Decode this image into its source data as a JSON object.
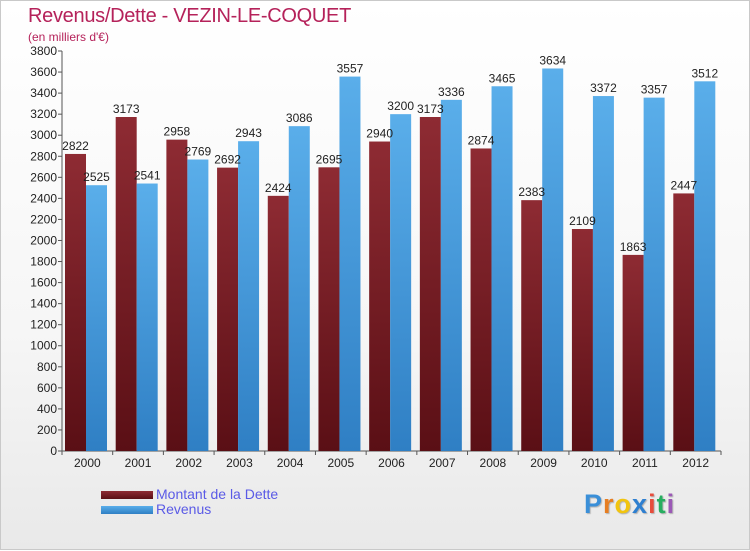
{
  "colors": {
    "debt": "#7a1e24",
    "debt_light": "#8e2b33",
    "revenue": "#4da3e4",
    "revenue_dark": "#2f7fc4",
    "title": "#b5225a",
    "legend_text": "#5a5ae6"
  },
  "brand": {
    "letters": [
      "P",
      "r",
      "o",
      "x",
      "i",
      "t",
      "i"
    ],
    "letter_colors": [
      "#3a8fd8",
      "#e67e22",
      "#f1c40f",
      "#2e7fd0",
      "#e74c3c",
      "#27ae60",
      "#9b59b6"
    ]
  },
  "chart_data": {
    "type": "bar",
    "title": "Revenus/Dette - VEZIN-LE-COQUET",
    "subtitle": "(en milliers d'€)",
    "categories": [
      "2000",
      "2001",
      "2002",
      "2003",
      "2004",
      "2005",
      "2006",
      "2007",
      "2008",
      "2009",
      "2010",
      "2011",
      "2012"
    ],
    "series": [
      {
        "name": "Montant de la Dette",
        "values": [
          2822,
          3173,
          2958,
          2692,
          2424,
          2695,
          2940,
          3173,
          2874,
          2383,
          2109,
          1863,
          2447
        ],
        "labels": [
          "2822",
          "3173",
          "2958",
          "2692",
          "2424",
          "2695",
          "2940",
          "3173",
          "2874",
          "2383",
          "2109",
          "1863",
          "2447"
        ]
      },
      {
        "name": "Revenus",
        "values": [
          2525,
          2541,
          2769,
          2943,
          3086,
          3557,
          3200,
          3336,
          3465,
          3634,
          3372,
          3357,
          3512
        ],
        "labels": [
          "2525",
          "2541",
          "2769",
          "2943",
          "3086",
          "3557",
          "3200",
          "3336",
          "3465",
          "3634",
          "3372",
          "3357",
          "3512"
        ]
      }
    ],
    "ylim": [
      0,
      3800
    ],
    "ytick_step": 200,
    "yticks": [
      "0",
      "200",
      "400",
      "600",
      "800",
      "1000",
      "1200",
      "1400",
      "1600",
      "1800",
      "2000",
      "2200",
      "2400",
      "2600",
      "2800",
      "3000",
      "3200",
      "3400",
      "3600",
      "3800"
    ],
    "xlabel": "",
    "ylabel": "",
    "grid": false,
    "legend_position": "bottom-left"
  }
}
